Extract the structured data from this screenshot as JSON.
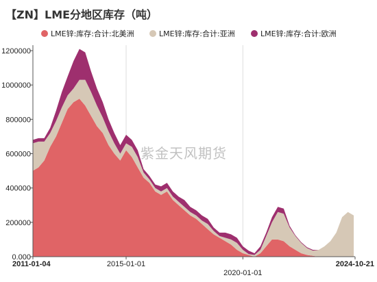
{
  "chart_data": {
    "type": "area",
    "stacked": true,
    "title": "【ZN】LME分地区库存（吨）",
    "watermark": "紫金天风期货",
    "xlabel": "",
    "ylabel": "",
    "ylim": [
      0,
      1200000
    ],
    "yticks": [
      0,
      200000,
      400000,
      600000,
      800000,
      1000000,
      1200000
    ],
    "ytick_labels": [
      "0.000",
      "200000",
      "400000",
      "600000",
      "800000",
      "1000000",
      "1200000"
    ],
    "xlim": [
      "2011-01-04",
      "2024-10-21"
    ],
    "xticks": [
      {
        "date": "2011-01-04",
        "label": "2011-01-04",
        "bold": true,
        "row": 0
      },
      {
        "date": "2015-01-01",
        "label": "2015-01-01",
        "bold": false,
        "row": 0
      },
      {
        "date": "2020-01-01",
        "label": "2020-01-01",
        "bold": false,
        "row": 1
      },
      {
        "date": "2024-10-21",
        "label": "2024-10-21",
        "bold": true,
        "row": 0
      }
    ],
    "grid_dates": [
      "2015-01-01",
      "2020-01-01"
    ],
    "legend_position": "top",
    "x": [
      "2011-01",
      "2011-04",
      "2011-07",
      "2011-10",
      "2012-01",
      "2012-04",
      "2012-07",
      "2012-10",
      "2013-01",
      "2013-04",
      "2013-07",
      "2013-10",
      "2014-01",
      "2014-04",
      "2014-07",
      "2014-10",
      "2015-01",
      "2015-04",
      "2015-07",
      "2015-10",
      "2016-01",
      "2016-04",
      "2016-07",
      "2016-10",
      "2017-01",
      "2017-04",
      "2017-07",
      "2017-10",
      "2018-01",
      "2018-04",
      "2018-07",
      "2018-10",
      "2019-01",
      "2019-04",
      "2019-07",
      "2019-10",
      "2020-01",
      "2020-04",
      "2020-07",
      "2020-10",
      "2021-01",
      "2021-04",
      "2021-07",
      "2021-10",
      "2022-01",
      "2022-04",
      "2022-07",
      "2022-10",
      "2023-01",
      "2023-04",
      "2023-07",
      "2023-10",
      "2024-01",
      "2024-04",
      "2024-07",
      "2024-10"
    ],
    "series": [
      {
        "name": "LME锌:库存:合计:北美洲",
        "color": "#e06466",
        "values": [
          500000,
          520000,
          560000,
          640000,
          700000,
          780000,
          860000,
          900000,
          920000,
          880000,
          820000,
          760000,
          720000,
          650000,
          600000,
          560000,
          620000,
          580000,
          520000,
          460000,
          430000,
          380000,
          360000,
          380000,
          330000,
          300000,
          270000,
          240000,
          220000,
          190000,
          160000,
          130000,
          110000,
          90000,
          70000,
          40000,
          20000,
          10000,
          0,
          20000,
          60000,
          100000,
          100000,
          90000,
          60000,
          40000,
          20000,
          10000,
          5000,
          0,
          0,
          0,
          0,
          0,
          0,
          0
        ]
      },
      {
        "name": "LME锌:库存:合计:亚洲",
        "color": "#d6c8b6",
        "values": [
          160000,
          150000,
          110000,
          80000,
          90000,
          90000,
          80000,
          80000,
          110000,
          150000,
          140000,
          120000,
          90000,
          80000,
          60000,
          40000,
          40000,
          60000,
          60000,
          30000,
          20000,
          20000,
          20000,
          20000,
          20000,
          20000,
          20000,
          20000,
          20000,
          20000,
          30000,
          20000,
          10000,
          20000,
          30000,
          40000,
          20000,
          5000,
          10000,
          20000,
          60000,
          100000,
          160000,
          160000,
          110000,
          80000,
          60000,
          40000,
          30000,
          40000,
          60000,
          90000,
          140000,
          230000,
          260000,
          240000
        ]
      },
      {
        "name": "LME锌:库存:合计:欧洲",
        "color": "#9e2f6e",
        "values": [
          20000,
          20000,
          20000,
          30000,
          60000,
          90000,
          110000,
          160000,
          180000,
          160000,
          120000,
          100000,
          90000,
          70000,
          60000,
          50000,
          50000,
          40000,
          40000,
          20000,
          20000,
          20000,
          30000,
          30000,
          30000,
          30000,
          40000,
          30000,
          30000,
          30000,
          30000,
          20000,
          20000,
          30000,
          30000,
          30000,
          20000,
          20000,
          10000,
          20000,
          20000,
          30000,
          30000,
          30000,
          10000,
          5000,
          5000,
          5000,
          5000,
          0,
          0,
          0,
          0,
          0,
          0,
          0
        ]
      }
    ]
  }
}
